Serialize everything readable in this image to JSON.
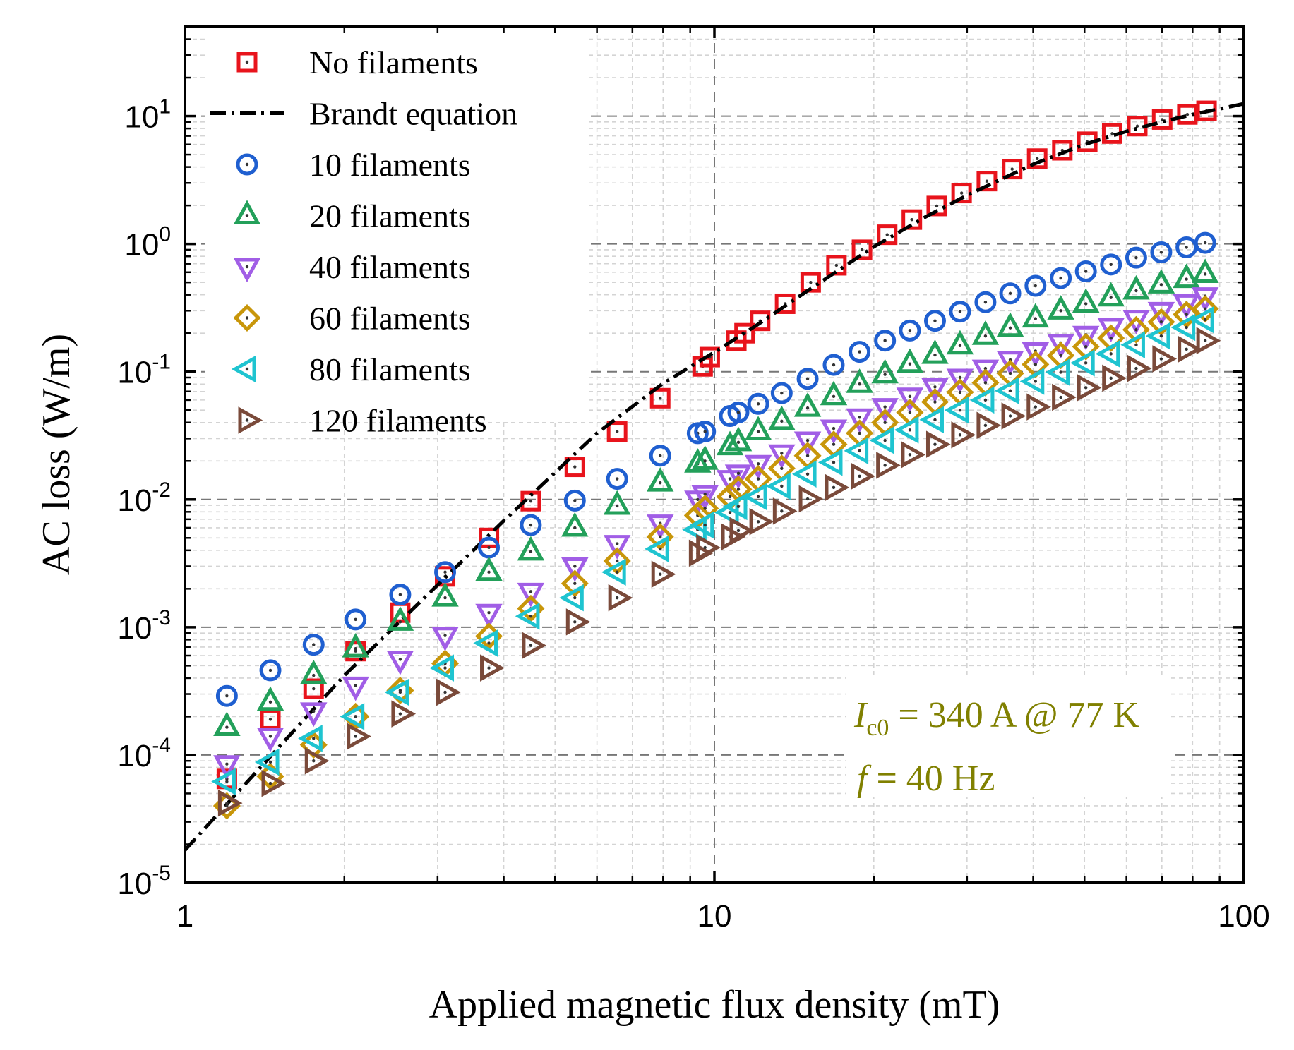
{
  "chart_data": {
    "type": "scatter",
    "title": "",
    "xlabel": "Applied magnetic flux density (mT)",
    "ylabel": "AC loss (W/m)",
    "x_scale": "log",
    "y_scale": "log",
    "xlim": [
      1,
      100
    ],
    "ylim": [
      1e-05,
      50
    ],
    "x_ticks": [
      {
        "value": 1,
        "label": "1"
      },
      {
        "value": 10,
        "label": "10"
      },
      {
        "value": 100,
        "label": "100"
      }
    ],
    "y_ticks": [
      {
        "value": 1e-05,
        "base": "10",
        "exp": "-5"
      },
      {
        "value": 0.0001,
        "base": "10",
        "exp": "-4"
      },
      {
        "value": 0.001,
        "base": "10",
        "exp": "-3"
      },
      {
        "value": 0.01,
        "base": "10",
        "exp": "-2"
      },
      {
        "value": 0.1,
        "base": "10",
        "exp": "-1"
      },
      {
        "value": 1,
        "base": "10",
        "exp": "0"
      },
      {
        "value": 10,
        "base": "10",
        "exp": "1"
      }
    ],
    "grid": true,
    "legend_position": "top-left",
    "annotations": {
      "line1": {
        "sym": "I",
        "sub": "c0",
        "rest": " = 340 A @ 77 K"
      },
      "line2": {
        "sym": "f",
        "rest": " = 40 Hz"
      },
      "color": "#808000"
    },
    "series": [
      {
        "name": "No filaments",
        "marker": "square",
        "color": "#e8141c",
        "x": [
          1.2,
          1.45,
          1.75,
          2.1,
          2.55,
          3.1,
          3.75,
          4.5,
          5.45,
          6.55,
          7.9,
          9.5,
          9.8,
          11.0,
          11.4,
          12.2,
          13.6,
          15.2,
          17.0,
          19.0,
          21.2,
          23.6,
          26.3,
          29.3,
          32.7,
          36.5,
          40.7,
          45.4,
          50.6,
          56.4,
          62.9,
          70.1,
          78.2,
          85.0
        ],
        "y": [
          6.5e-05,
          0.00019,
          0.00033,
          0.00065,
          0.0013,
          0.0025,
          0.005,
          0.0097,
          0.018,
          0.034,
          0.062,
          0.11,
          0.13,
          0.175,
          0.2,
          0.25,
          0.34,
          0.5,
          0.68,
          0.9,
          1.18,
          1.55,
          1.98,
          2.5,
          3.1,
          3.85,
          4.65,
          5.4,
          6.3,
          7.3,
          8.35,
          9.4,
          10.3,
          11.0
        ]
      },
      {
        "name": "Brandt equation",
        "marker": "line",
        "color": "#000000",
        "x": [
          1,
          2,
          4,
          6,
          8,
          10,
          12,
          15,
          20,
          25,
          30,
          40,
          50,
          60,
          70,
          80,
          90,
          100
        ],
        "y": [
          1.8e-05,
          0.00042,
          0.0068,
          0.033,
          0.081,
          0.142,
          0.23,
          0.43,
          0.95,
          1.62,
          2.4,
          4.2,
          6.0,
          7.6,
          9.0,
          10.3,
          11.4,
          12.5
        ]
      },
      {
        "name": "10 filaments",
        "marker": "circle",
        "color": "#1f5fd0",
        "x": [
          1.2,
          1.45,
          1.75,
          2.1,
          2.55,
          3.1,
          3.75,
          4.5,
          5.45,
          6.55,
          7.9,
          9.3,
          9.6,
          10.7,
          11.1,
          12.1,
          13.4,
          15.0,
          16.8,
          18.8,
          21.0,
          23.4,
          26.1,
          29.1,
          32.5,
          36.2,
          40.4,
          45.1,
          50.3,
          56.1,
          62.6,
          69.8,
          77.9,
          84.5
        ],
        "y": [
          0.00029,
          0.00046,
          0.00073,
          0.00115,
          0.0018,
          0.0027,
          0.0042,
          0.0063,
          0.0098,
          0.0145,
          0.022,
          0.033,
          0.034,
          0.045,
          0.048,
          0.056,
          0.068,
          0.088,
          0.113,
          0.143,
          0.175,
          0.21,
          0.25,
          0.295,
          0.35,
          0.41,
          0.47,
          0.54,
          0.61,
          0.69,
          0.78,
          0.86,
          0.94,
          1.02
        ]
      },
      {
        "name": "20 filaments",
        "marker": "triangle-up",
        "color": "#23a05a",
        "x": [
          1.2,
          1.45,
          1.75,
          2.1,
          2.55,
          3.1,
          3.75,
          4.5,
          5.45,
          6.55,
          7.9,
          9.3,
          9.6,
          10.7,
          11.1,
          12.1,
          13.4,
          15.0,
          16.8,
          18.8,
          21.0,
          23.4,
          26.1,
          29.1,
          32.5,
          36.2,
          40.4,
          45.1,
          50.3,
          56.1,
          62.6,
          69.8,
          77.9,
          84.5
        ],
        "y": [
          0.000165,
          0.00026,
          0.00042,
          0.00068,
          0.0011,
          0.0017,
          0.0027,
          0.0039,
          0.006,
          0.0089,
          0.0135,
          0.019,
          0.02,
          0.026,
          0.028,
          0.034,
          0.041,
          0.052,
          0.064,
          0.08,
          0.095,
          0.115,
          0.135,
          0.16,
          0.19,
          0.22,
          0.26,
          0.3,
          0.34,
          0.38,
          0.43,
          0.48,
          0.53,
          0.58
        ]
      },
      {
        "name": "40 filaments",
        "marker": "triangle-down",
        "color": "#a15ee6",
        "x": [
          1.2,
          1.45,
          1.75,
          2.1,
          2.55,
          3.1,
          3.75,
          4.5,
          5.45,
          6.55,
          7.9,
          9.3,
          9.6,
          10.7,
          11.1,
          12.1,
          13.4,
          15.0,
          16.8,
          18.8,
          21.0,
          23.4,
          26.1,
          29.1,
          32.5,
          36.2,
          40.4,
          45.1,
          50.3,
          56.1,
          62.6,
          69.8,
          77.9,
          84.5
        ],
        "y": [
          8.5e-05,
          0.00014,
          0.00022,
          0.00035,
          0.00056,
          0.00086,
          0.0013,
          0.0019,
          0.003,
          0.0045,
          0.0065,
          0.01,
          0.011,
          0.0145,
          0.016,
          0.019,
          0.023,
          0.029,
          0.036,
          0.044,
          0.053,
          0.064,
          0.076,
          0.09,
          0.106,
          0.124,
          0.145,
          0.168,
          0.195,
          0.225,
          0.26,
          0.3,
          0.345,
          0.39
        ]
      },
      {
        "name": "60 filaments",
        "marker": "diamond",
        "color": "#c8960a",
        "x": [
          1.2,
          1.45,
          1.75,
          2.1,
          2.55,
          3.1,
          3.75,
          4.5,
          5.45,
          6.55,
          7.9,
          9.3,
          9.6,
          10.7,
          11.1,
          12.1,
          13.4,
          15.0,
          16.8,
          18.8,
          21.0,
          23.4,
          26.1,
          29.1,
          32.5,
          36.2,
          40.4,
          45.1,
          50.3,
          56.1,
          62.6,
          69.8,
          77.9,
          84.5
        ],
        "y": [
          4e-05,
          6.8e-05,
          0.00012,
          0.0002,
          0.00032,
          0.00052,
          0.00085,
          0.0014,
          0.0022,
          0.0033,
          0.0051,
          0.0075,
          0.0085,
          0.0105,
          0.012,
          0.0145,
          0.0175,
          0.022,
          0.027,
          0.033,
          0.04,
          0.048,
          0.058,
          0.069,
          0.082,
          0.097,
          0.114,
          0.134,
          0.157,
          0.183,
          0.213,
          0.245,
          0.28,
          0.31
        ]
      },
      {
        "name": "80 filaments",
        "marker": "triangle-left",
        "color": "#1fc4d0",
        "x": [
          1.2,
          1.45,
          1.75,
          2.1,
          2.55,
          3.1,
          3.75,
          4.5,
          5.45,
          6.55,
          7.9,
          9.3,
          9.6,
          10.7,
          11.1,
          12.1,
          13.4,
          15.0,
          16.8,
          18.8,
          21.0,
          23.4,
          26.1,
          29.1,
          32.5,
          36.2,
          40.4,
          45.1,
          50.3,
          56.1,
          62.6,
          69.8,
          77.9,
          84.5
        ],
        "y": [
          6.2e-05,
          8.8e-05,
          0.000135,
          0.0002,
          0.00031,
          0.00048,
          0.00075,
          0.00122,
          0.0017,
          0.0027,
          0.0041,
          0.0058,
          0.0063,
          0.0079,
          0.0088,
          0.0105,
          0.0127,
          0.0158,
          0.0195,
          0.024,
          0.029,
          0.035,
          0.042,
          0.05,
          0.06,
          0.071,
          0.084,
          0.099,
          0.117,
          0.138,
          0.162,
          0.19,
          0.222,
          0.255
        ]
      },
      {
        "name": "120 filaments",
        "marker": "triangle-right",
        "color": "#7a4a3a",
        "x": [
          1.2,
          1.45,
          1.75,
          2.1,
          2.55,
          3.1,
          3.75,
          4.5,
          5.45,
          6.55,
          7.9,
          9.3,
          9.6,
          10.7,
          11.1,
          12.1,
          13.4,
          15.0,
          16.8,
          18.8,
          21.0,
          23.4,
          26.1,
          29.1,
          32.5,
          36.2,
          40.4,
          45.1,
          50.3,
          56.1,
          62.6,
          69.8,
          77.9,
          84.5
        ],
        "y": [
          4.2e-05,
          6e-05,
          9e-05,
          0.00014,
          0.00021,
          0.00031,
          0.00048,
          0.00072,
          0.0011,
          0.0017,
          0.0026,
          0.0038,
          0.0042,
          0.0051,
          0.0057,
          0.0067,
          0.0081,
          0.0101,
          0.0124,
          0.0152,
          0.0185,
          0.0224,
          0.027,
          0.032,
          0.038,
          0.045,
          0.053,
          0.063,
          0.075,
          0.089,
          0.106,
          0.126,
          0.15,
          0.175
        ]
      }
    ]
  }
}
